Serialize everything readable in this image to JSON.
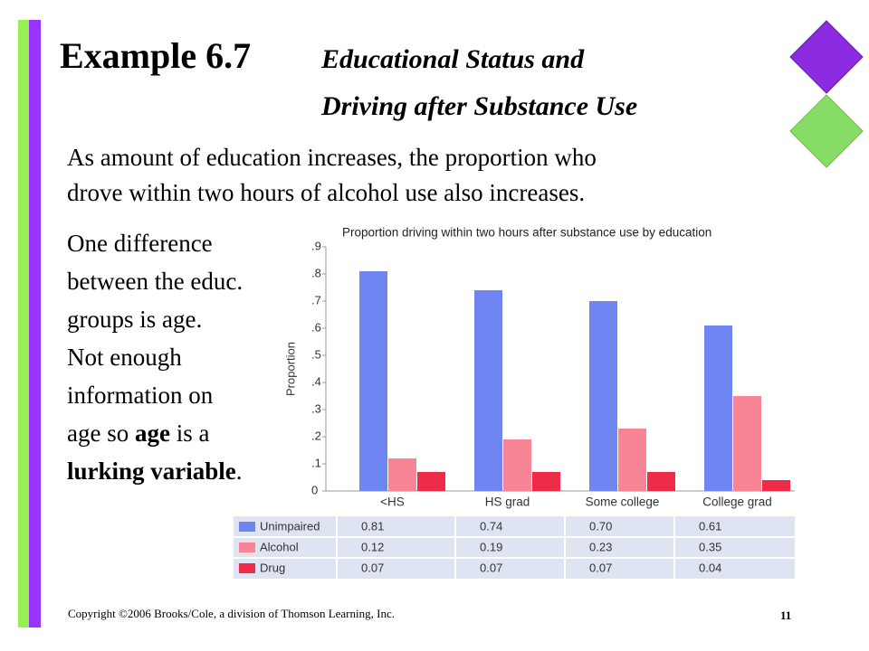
{
  "title": "Example 6.7",
  "subtitle_lines": [
    "Educational Status and",
    "Driving after Substance Use"
  ],
  "intro_lines": [
    "As amount of education increases, the proportion who",
    "drove within two hours of alcohol use also increases."
  ],
  "side_lines": [
    [
      {
        "text": "One difference",
        "bold": false
      }
    ],
    [
      {
        "text": "between the educ.",
        "bold": false
      }
    ],
    [
      {
        "text": "groups is age.",
        "bold": false
      }
    ],
    [
      {
        "text": "Not enough",
        "bold": false
      }
    ],
    [
      {
        "text": "information on",
        "bold": false
      }
    ],
    [
      {
        "text": "age so ",
        "bold": false
      },
      {
        "text": "age",
        "bold": true
      },
      {
        "text": " is a",
        "bold": false
      }
    ],
    [
      {
        "text": "lurking variable",
        "bold": true
      },
      {
        "text": ".",
        "bold": false
      }
    ]
  ],
  "footer": "Copyright ©2006 Brooks/Cole, a division of Thomson Learning, Inc.",
  "page_number": "11",
  "chart_data": {
    "type": "bar",
    "title": "Proportion driving within two hours after substance use by education",
    "y_label": "Proportion",
    "categories": [
      "<HS",
      "HS grad",
      "Some college",
      "College grad"
    ],
    "series": [
      {
        "name": "Unimpaired",
        "color": "#6f86f2",
        "values": [
          0.81,
          0.74,
          0.7,
          0.61
        ],
        "value_labels": [
          "0.81",
          "0.74",
          "0.70",
          "0.61"
        ]
      },
      {
        "name": "Alcohol",
        "color": "#f78595",
        "values": [
          0.12,
          0.19,
          0.23,
          0.35
        ],
        "value_labels": [
          "0.12",
          "0.19",
          "0.23",
          "0.35"
        ]
      },
      {
        "name": "Drug",
        "color": "#ee2c4a",
        "values": [
          0.07,
          0.07,
          0.07,
          0.04
        ],
        "value_labels": [
          "0.07",
          "0.07",
          "0.07",
          "0.04"
        ]
      }
    ],
    "ylim": [
      0,
      0.9
    ],
    "yticks": [
      0,
      {
        "value": 0.1,
        "label": ".1"
      },
      {
        "value": 0.2,
        "label": ".2"
      },
      {
        "value": 0.3,
        "label": ".3"
      },
      {
        "value": 0.4,
        "label": ".4"
      },
      {
        "value": 0.5,
        "label": ".5"
      },
      {
        "value": 0.6,
        "label": ".6"
      },
      {
        "value": 0.7,
        "label": ".7"
      },
      {
        "value": 0.8,
        "label": ".8"
      },
      {
        "value": 0.9,
        "label": ".9"
      }
    ],
    "grid": false
  }
}
